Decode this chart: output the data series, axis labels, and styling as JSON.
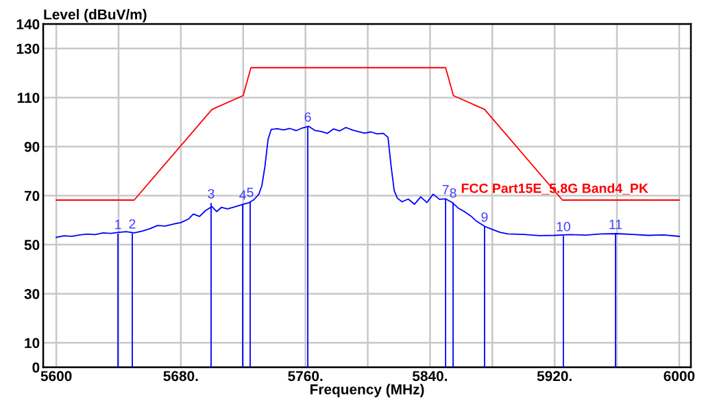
{
  "chart_data": {
    "type": "line",
    "xlabel": "Frequency (MHz)",
    "ylabel": "Level (dBuV/m)",
    "xlim": [
      5591.6,
      6007.5
    ],
    "ylim": [
      0,
      140
    ],
    "xticks": [
      5600,
      {
        "value": 5640,
        "label": null
      },
      {
        "value": 5680,
        "label": "5680."
      },
      {
        "value": 5720,
        "label": null
      },
      {
        "value": 5760,
        "label": "5760."
      },
      {
        "value": 5800,
        "label": null
      },
      {
        "value": 5840,
        "label": "5840."
      },
      {
        "value": 5880,
        "label": null
      },
      {
        "value": 5920,
        "label": "5920."
      },
      {
        "value": 5960,
        "label": null
      },
      6000
    ],
    "yticks": [
      0,
      10,
      30,
      50,
      70,
      90,
      110,
      130,
      140
    ],
    "grid": true,
    "legend": false,
    "series": [
      {
        "name": "FCC Part15E_5.8G Band4_PK",
        "color": "#ff0000",
        "x": [
          5600,
          5650,
          5700,
          5720,
          5725,
          5850,
          5855,
          5875,
          5925,
          6000
        ],
        "values": [
          68.2,
          68.2,
          105.2,
          110.8,
          122.2,
          122.2,
          110.8,
          105.2,
          68.2,
          68.2
        ]
      },
      {
        "color": "#0000ff",
        "x": [
          5600,
          5605,
          5610,
          5615,
          5620,
          5625,
          5630,
          5635,
          5640,
          5645,
          5650,
          5655,
          5660,
          5665,
          5670,
          5675,
          5680,
          5685,
          5688,
          5692,
          5696,
          5700,
          5703,
          5706,
          5710,
          5715,
          5720,
          5724,
          5727,
          5730,
          5732,
          5734,
          5736,
          5738,
          5742,
          5746,
          5750,
          5754,
          5758,
          5762,
          5766,
          5770,
          5774,
          5778,
          5782,
          5786,
          5790,
          5794,
          5798,
          5802,
          5806,
          5810,
          5813,
          5815,
          5817,
          5819,
          5822,
          5826,
          5830,
          5834,
          5838,
          5842,
          5846,
          5850,
          5854,
          5858,
          5862,
          5866,
          5870,
          5875,
          5880,
          5885,
          5890,
          5900,
          5910,
          5920,
          5930,
          5940,
          5950,
          5960,
          5970,
          5980,
          5990,
          6000
        ],
        "values": [
          53,
          53.6,
          53.4,
          54,
          54.3,
          54.1,
          54.8,
          54.6,
          55,
          55.3,
          54.8,
          55.5,
          56.5,
          57.8,
          57.6,
          58.4,
          59,
          60.5,
          62.5,
          61.5,
          64,
          65.5,
          63.5,
          65.2,
          64.6,
          65.5,
          66.5,
          67.2,
          68.4,
          70.5,
          74,
          82,
          93,
          97,
          97.3,
          96.8,
          97.4,
          96.5,
          97.6,
          98.3,
          96.6,
          96.2,
          95.4,
          97.2,
          96.4,
          97.8,
          96.8,
          96.1,
          95.5,
          96,
          95.2,
          95.4,
          93.8,
          82,
          72,
          69,
          67.5,
          68.6,
          66.5,
          69.5,
          67.2,
          70.6,
          68.5,
          68.7,
          67.3,
          65,
          63.5,
          61.8,
          59.5,
          57.5,
          56.2,
          55,
          54.4,
          54.2,
          53.7,
          53.8,
          54.1,
          53.9,
          54.4,
          54.5,
          54.2,
          53.8,
          54,
          53.4
        ]
      },
      {
        "type": "bar",
        "color": "#0000ff",
        "x": [
          5639.6,
          5648.8,
          5699.4,
          5719.7,
          5724.5,
          5761.5,
          5850,
          5854.8,
          5875,
          5925.6,
          5959.1
        ],
        "values": [
          54.5,
          54.7,
          67,
          66.5,
          67.6,
          98.3,
          68.7,
          67.3,
          57.5,
          53.6,
          54.5
        ]
      }
    ],
    "annotations": [
      {
        "text": "1",
        "x": 5639.6,
        "y": 54.5
      },
      {
        "text": "2",
        "x": 5648.8,
        "y": 54.7
      },
      {
        "text": "3",
        "x": 5699.4,
        "y": 67
      },
      {
        "text": "4",
        "x": 5719.7,
        "y": 66.5
      },
      {
        "text": "5",
        "x": 5724.5,
        "y": 67.6
      },
      {
        "text": "6",
        "x": 5761.5,
        "y": 98.3
      },
      {
        "text": "7",
        "x": 5850,
        "y": 68.7
      },
      {
        "text": "8",
        "x": 5854.8,
        "y": 67.3
      },
      {
        "text": "9",
        "x": 5875,
        "y": 57.5
      },
      {
        "text": "10",
        "x": 5925.6,
        "y": 53.6
      },
      {
        "text": "11",
        "x": 5959.1,
        "y": 54.5
      }
    ]
  }
}
